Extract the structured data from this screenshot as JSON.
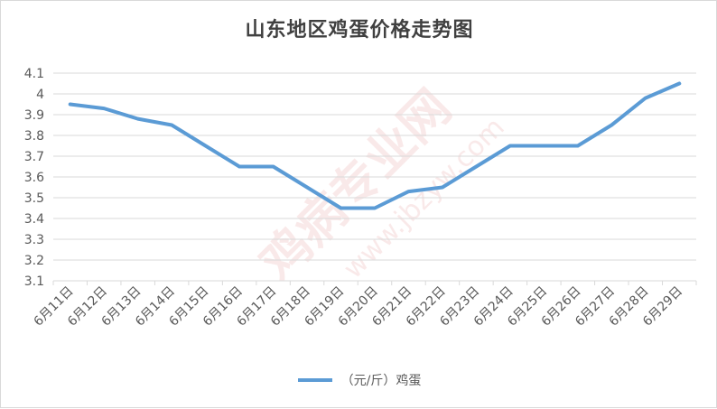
{
  "chart_data": {
    "type": "line",
    "title": "山东地区鸡蛋价格走势图",
    "categories": [
      "6月11日",
      "6月12日",
      "6月13日",
      "6月14日",
      "6月15日",
      "6月16日",
      "6月17日",
      "6月18日",
      "6月19日",
      "6月20日",
      "6月21日",
      "6月22日",
      "6月23日",
      "6月24日",
      "6月25日",
      "6月26日",
      "6月27日",
      "6月28日",
      "6月29日"
    ],
    "series": [
      {
        "name": "（元/斤）鸡蛋",
        "color": "#5b9bd5",
        "values": [
          3.95,
          3.93,
          3.88,
          3.85,
          3.75,
          3.65,
          3.65,
          3.55,
          3.45,
          3.45,
          3.53,
          3.55,
          3.65,
          3.75,
          3.75,
          3.75,
          3.85,
          3.98,
          4.05
        ]
      }
    ],
    "yticks": [
      "3.1",
      "3.2",
      "3.3",
      "3.4",
      "3.5",
      "3.6",
      "3.7",
      "3.8",
      "3.9",
      "4",
      "4.1"
    ],
    "ylim": [
      3.1,
      4.1
    ],
    "grid": true,
    "legend_position": "bottom"
  },
  "watermark": {
    "text_main": "鸡病专业网",
    "text_url": "www.jbzyw.com",
    "color": "#e8a0a0"
  }
}
